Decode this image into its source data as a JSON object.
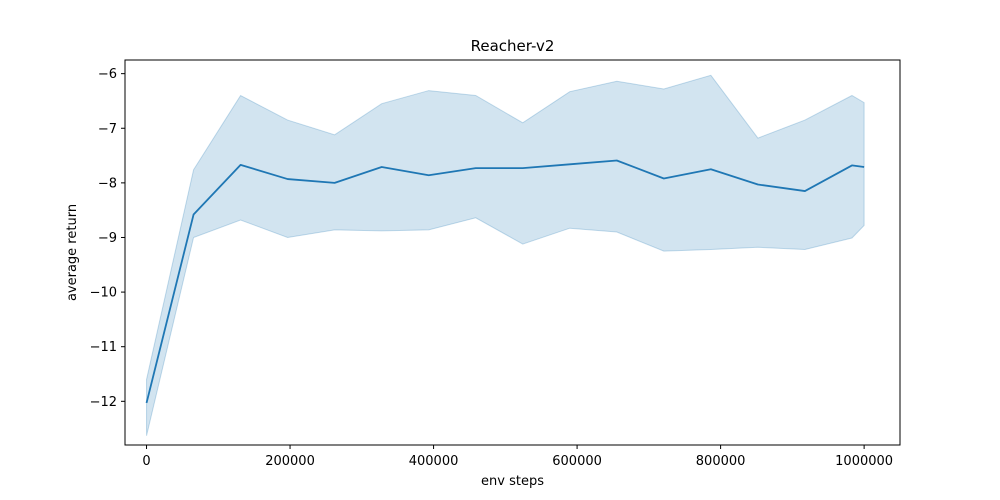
{
  "chart_data": {
    "type": "line",
    "title": "Reacher-v2",
    "xlabel": "env steps",
    "ylabel": "average return",
    "xlim": [
      -30000,
      1050000
    ],
    "ylim": [
      -12.8,
      -5.75
    ],
    "xticks": [
      0,
      200000,
      400000,
      600000,
      800000,
      1000000
    ],
    "xtick_labels": [
      "0",
      "200000",
      "400000",
      "600000",
      "800000",
      "1000000"
    ],
    "yticks": [
      -12,
      -11,
      -10,
      -9,
      -8,
      -7,
      -6
    ],
    "ytick_labels": [
      "−12",
      "−11",
      "−10",
      "−9",
      "−8",
      "−7",
      "−6"
    ],
    "grid": false,
    "legend": "none",
    "series": [
      {
        "x": [
          0,
          65536,
          131072,
          196608,
          262144,
          327680,
          393216,
          458752,
          524288,
          589824,
          655360,
          720896,
          786432,
          851968,
          917504,
          983040,
          1000000
        ],
        "values": [
          -12.03,
          -8.58,
          -7.67,
          -7.93,
          -8.0,
          -7.71,
          -7.86,
          -7.73,
          -7.73,
          -7.66,
          -7.59,
          -7.92,
          -7.75,
          -8.03,
          -8.15,
          -7.68,
          -7.71
        ],
        "upper": [
          -11.6,
          -7.76,
          -6.4,
          -6.85,
          -7.12,
          -6.55,
          -6.31,
          -6.4,
          -6.9,
          -6.33,
          -6.14,
          -6.28,
          -6.03,
          -7.18,
          -6.85,
          -6.4,
          -6.53
        ],
        "lower": [
          -12.63,
          -9.0,
          -8.68,
          -9.0,
          -8.86,
          -8.88,
          -8.86,
          -8.64,
          -9.12,
          -8.83,
          -8.9,
          -9.25,
          -9.22,
          -9.18,
          -9.22,
          -9.01,
          -8.78
        ],
        "color": "#1f77b4",
        "band_color": "#1f77b4",
        "band_opacity": 0.2
      }
    ]
  }
}
